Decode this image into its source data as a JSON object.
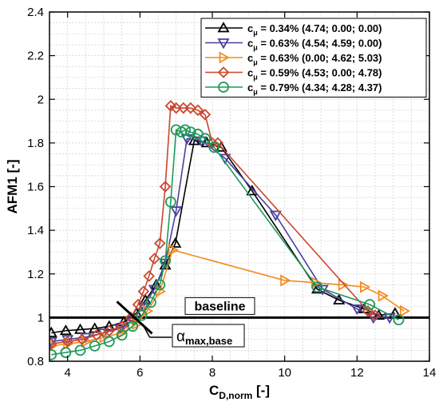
{
  "chart_data": {
    "type": "line",
    "xlabel": "C",
    "xlabel_sub": "D,norm",
    "xlabel_unit": " [-]",
    "ylabel": "AFM1 [-]",
    "xlim": [
      3.5,
      14
    ],
    "ylim": [
      0.8,
      2.4
    ],
    "xticks": [
      4,
      6,
      8,
      10,
      12,
      14
    ],
    "yticks": [
      0.8,
      1,
      1.2,
      1.4,
      1.6,
      1.8,
      2,
      2.2,
      2.4
    ],
    "grid": true,
    "legend_position": "top-right",
    "baseline": {
      "label": "baseline",
      "y": 1.0
    },
    "alpha_annotation": {
      "symbol": "α",
      "subscript": "max,base",
      "knee": [
        5.85,
        1.0
      ],
      "bottom_y": 0.91
    },
    "series": [
      {
        "name": "c",
        "name_sub": "μ",
        "name_rest": " = 0.34% (4.74; 0.00; 0.00)",
        "color": "#000000",
        "marker": "triangle-up",
        "x": [
          3.55,
          3.95,
          4.35,
          4.75,
          5.15,
          5.55,
          5.9,
          6.15,
          6.45,
          6.7,
          6.98,
          7.5,
          7.85,
          8.25,
          9.1,
          10.9,
          11.5,
          12.2,
          12.6,
          13.05
        ],
        "y": [
          0.93,
          0.94,
          0.945,
          0.95,
          0.96,
          0.98,
          1.02,
          1.08,
          1.15,
          1.24,
          1.34,
          1.81,
          1.8,
          1.78,
          1.58,
          1.13,
          1.08,
          1.04,
          1.01,
          1.02
        ]
      },
      {
        "name": "c",
        "name_sub": "μ",
        "name_rest": " = 0.63% (4.54; 4.59; 0.00)",
        "color": "#4a3fa0",
        "marker": "triangle-down",
        "x": [
          3.55,
          4.0,
          4.5,
          5.0,
          5.45,
          5.8,
          6.1,
          6.4,
          6.7,
          7.0,
          7.3,
          7.7,
          8.35,
          9.75,
          11.05,
          12.0,
          12.45,
          12.9
        ],
        "y": [
          0.89,
          0.9,
          0.91,
          0.93,
          0.95,
          0.99,
          1.05,
          1.13,
          1.25,
          1.49,
          1.82,
          1.81,
          1.73,
          1.47,
          1.13,
          1.04,
          1.0,
          1.0
        ]
      },
      {
        "name": "c",
        "name_sub": "μ",
        "name_rest": " = 0.63% (0.00; 4.62; 5.03)",
        "color": "#f28c1e",
        "marker": "triangle-right",
        "x": [
          3.55,
          4.0,
          4.5,
          5.0,
          5.5,
          5.9,
          6.2,
          6.55,
          6.9,
          10.0,
          10.85,
          11.6,
          12.2,
          12.7,
          13.3
        ],
        "y": [
          0.87,
          0.88,
          0.89,
          0.91,
          0.93,
          0.97,
          1.03,
          1.12,
          1.31,
          1.17,
          1.16,
          1.15,
          1.14,
          1.1,
          1.03
        ]
      },
      {
        "name": "c",
        "name_sub": "μ",
        "name_rest": " = 0.59% (4.53; 0.00; 4.78)",
        "color": "#c9472e",
        "marker": "diamond",
        "x": [
          3.55,
          4.0,
          4.4,
          4.8,
          5.15,
          5.5,
          5.75,
          5.95,
          6.1,
          6.25,
          6.4,
          6.55,
          6.7,
          6.85,
          7.0,
          7.2,
          7.4,
          7.6,
          7.8,
          8.0,
          8.15,
          12.3,
          12.5
        ],
        "y": [
          0.88,
          0.89,
          0.9,
          0.92,
          0.94,
          0.96,
          1.0,
          1.06,
          1.12,
          1.19,
          1.27,
          1.34,
          1.6,
          1.97,
          1.96,
          1.96,
          1.96,
          1.95,
          1.93,
          1.8,
          1.8,
          1.03,
          1.01
        ]
      },
      {
        "name": "c",
        "name_sub": "μ",
        "name_rest": " = 0.79% (4.34; 4.28; 4.37)",
        "color": "#1f9a5a",
        "marker": "circle",
        "x": [
          3.55,
          3.95,
          4.35,
          4.75,
          5.15,
          5.5,
          5.8,
          6.05,
          6.3,
          6.55,
          6.7,
          6.85,
          7.0,
          7.15,
          7.25,
          7.4,
          7.6,
          7.8,
          8.05,
          10.9,
          12.35,
          13.15
        ],
        "y": [
          0.83,
          0.84,
          0.85,
          0.87,
          0.89,
          0.92,
          0.96,
          1.01,
          1.07,
          1.15,
          1.26,
          1.53,
          1.86,
          1.85,
          1.86,
          1.85,
          1.84,
          1.82,
          1.78,
          1.14,
          1.06,
          0.99
        ]
      }
    ]
  }
}
